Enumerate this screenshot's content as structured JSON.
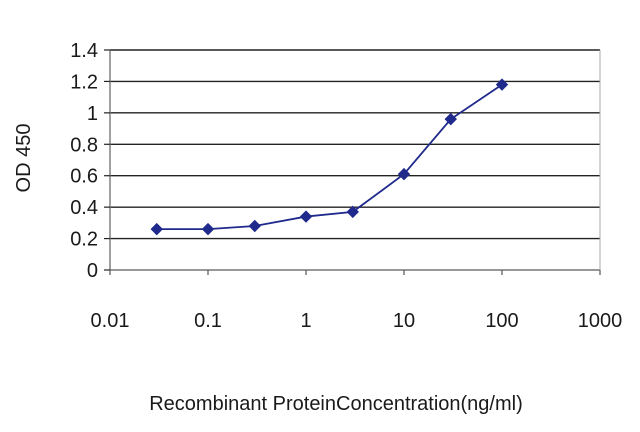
{
  "chart_data": {
    "type": "line",
    "title": "",
    "xlabel": "Recombinant ProteinConcentration(ng/ml)",
    "ylabel": "OD 450",
    "x_scale": "log",
    "xlim": [
      0.01,
      1000
    ],
    "ylim": [
      0,
      1.4
    ],
    "x_ticks": [
      "0.01",
      "0.1",
      "1",
      "10",
      "100",
      "1000"
    ],
    "y_ticks": [
      "0",
      "0.2",
      "0.4",
      "0.6",
      "0.8",
      "1",
      "1.2",
      "1.4"
    ],
    "grid": "horizontal",
    "legend": "none",
    "series": [
      {
        "x": [
          0.03,
          0.1,
          0.3,
          1,
          3,
          10,
          30,
          100
        ],
        "y": [
          0.26,
          0.26,
          0.28,
          0.34,
          0.37,
          0.61,
          0.96,
          1.18
        ],
        "color": "#1f2a8c",
        "marker": "diamond"
      }
    ]
  }
}
